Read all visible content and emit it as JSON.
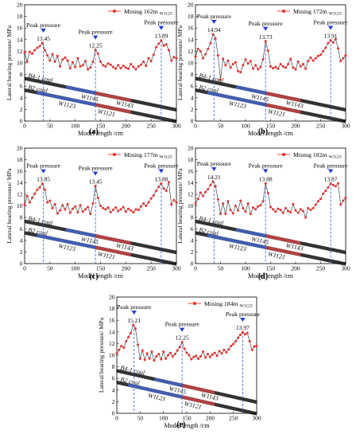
{
  "figure": {
    "ylabel": "Lateral bearing pressure/ MPa",
    "xlabel": "Model length /cm",
    "peak_label": "Peak pressure",
    "coal_labels": [
      "B4-1 coal",
      "B2 coal"
    ],
    "face_labels": [
      "W1145",
      "W1123",
      "W1143",
      "W1121"
    ],
    "legend_prefix": "Mining",
    "legend_subscript": "W1123"
  },
  "colors": {
    "series": "#e8302a",
    "peak_marker": "#1f3fd8",
    "dashed_line": "#3355dd",
    "seam_dark": "#333333",
    "seam_blue": "#4466cc",
    "seam_red": "#cc4444"
  },
  "chart_data": [
    {
      "type": "line",
      "panel": "(a)",
      "legend": "162m",
      "xlim": [
        0,
        300
      ],
      "ylim": [
        0,
        20
      ],
      "xticks": [
        0,
        50,
        100,
        150,
        200,
        250,
        300
      ],
      "yticks": [
        0,
        2,
        4,
        6,
        8,
        10,
        12,
        14,
        16,
        18,
        20
      ],
      "peaks": [
        {
          "x": 37,
          "y": 13.45,
          "label": "13.45"
        },
        {
          "x": 140,
          "y": 12.25,
          "label": "12.25"
        },
        {
          "x": 270,
          "y": 13.89,
          "label": "13.89"
        }
      ],
      "series": [
        {
          "x": [
            0,
            5,
            10,
            15,
            20,
            25,
            30,
            35,
            40,
            45,
            50,
            55,
            60,
            65,
            70,
            75,
            80,
            85,
            90,
            95,
            100,
            105,
            110,
            115,
            120,
            125,
            130,
            135,
            140,
            145,
            150,
            155,
            160,
            165,
            170,
            175,
            180,
            185,
            190,
            195,
            200,
            205,
            210,
            215,
            220,
            225,
            230,
            235,
            240,
            245,
            250,
            255,
            260,
            265,
            270,
            275,
            280,
            285,
            290,
            295,
            300
          ],
          "y": [
            11.8,
            10.2,
            11.9,
            11.6,
            12.2,
            12.6,
            12.9,
            13.45,
            12.2,
            11.3,
            10.4,
            11.5,
            10.2,
            11.2,
            9.4,
            10.6,
            10.9,
            10.4,
            9.1,
            10.1,
            9.3,
            10.8,
            9.4,
            9.6,
            10.3,
            8.9,
            9.2,
            10.2,
            12.25,
            11.6,
            10.2,
            9.6,
            9.4,
            9.9,
            9.7,
            9.3,
            9.0,
            9.6,
            9.1,
            9.5,
            9.2,
            9.0,
            9.8,
            9.3,
            8.9,
            9.4,
            9.7,
            10.2,
            9.5,
            10.8,
            10.3,
            11.4,
            12.7,
            13.3,
            13.89,
            13.0,
            13.2,
            12.2,
            10.4,
            11.0,
            10.8
          ]
        }
      ]
    },
    {
      "type": "line",
      "panel": "(b)",
      "legend": "172m",
      "xlim": [
        0,
        300
      ],
      "ylim": [
        0,
        20
      ],
      "xticks": [
        0,
        50,
        100,
        150,
        200,
        250,
        300
      ],
      "yticks": [
        0,
        2,
        4,
        6,
        8,
        10,
        12,
        14,
        16,
        18,
        20
      ],
      "peaks": [
        {
          "x": 37,
          "y": 14.94,
          "label": "14.94"
        },
        {
          "x": 140,
          "y": 13.73,
          "label": "13.73"
        },
        {
          "x": 270,
          "y": 13.91,
          "label": "13.91"
        }
      ],
      "series": [
        {
          "x": [
            0,
            5,
            10,
            15,
            20,
            25,
            30,
            35,
            40,
            45,
            50,
            55,
            60,
            65,
            70,
            75,
            80,
            85,
            90,
            95,
            100,
            105,
            110,
            115,
            120,
            125,
            130,
            135,
            140,
            145,
            150,
            155,
            160,
            165,
            170,
            175,
            180,
            185,
            190,
            195,
            200,
            205,
            210,
            215,
            220,
            225,
            230,
            235,
            240,
            245,
            250,
            255,
            260,
            265,
            270,
            275,
            280,
            285,
            290,
            295,
            300
          ],
          "y": [
            11.1,
            12.4,
            12.0,
            10.8,
            11.5,
            12.4,
            13.4,
            14.94,
            14.2,
            11.3,
            7.1,
            10.7,
            9.6,
            10.4,
            9.2,
            9.8,
            10.1,
            8.6,
            8.4,
            9.6,
            10.6,
            9.9,
            10.3,
            9.0,
            9.6,
            8.9,
            9.3,
            10.6,
            13.73,
            12.1,
            9.4,
            9.1,
            9.3,
            9.0,
            9.8,
            9.4,
            9.2,
            9.8,
            10.7,
            9.2,
            8.9,
            10.2,
            9.4,
            9.8,
            9.0,
            10.3,
            10.9,
            10.4,
            10.8,
            11.2,
            11.4,
            12.0,
            12.6,
            13.4,
            13.91,
            13.5,
            14.1,
            12.5,
            10.3,
            10.8,
            11.3
          ]
        }
      ]
    },
    {
      "type": "line",
      "panel": "(c)",
      "legend": "177m",
      "xlim": [
        0,
        300
      ],
      "ylim": [
        0,
        20
      ],
      "xticks": [
        0,
        50,
        100,
        150,
        200,
        250,
        300
      ],
      "yticks": [
        0,
        2,
        4,
        6,
        8,
        10,
        12,
        14,
        16,
        18,
        20
      ],
      "peaks": [
        {
          "x": 37,
          "y": 13.85,
          "label": "13.85"
        },
        {
          "x": 140,
          "y": 13.45,
          "label": "13.45"
        },
        {
          "x": 270,
          "y": 13.88,
          "label": "13.88"
        }
      ],
      "series": [
        {
          "x": [
            0,
            5,
            10,
            15,
            20,
            25,
            30,
            35,
            40,
            45,
            50,
            55,
            60,
            65,
            70,
            75,
            80,
            85,
            90,
            95,
            100,
            105,
            110,
            115,
            120,
            125,
            130,
            135,
            140,
            145,
            150,
            155,
            160,
            165,
            170,
            175,
            180,
            185,
            190,
            195,
            200,
            205,
            210,
            215,
            220,
            225,
            230,
            235,
            240,
            245,
            250,
            255,
            260,
            265,
            270,
            275,
            280,
            285,
            290,
            295,
            300
          ],
          "y": [
            10.2,
            11.7,
            10.6,
            11.4,
            12.1,
            12.8,
            13.2,
            13.85,
            12.8,
            10.6,
            10.9,
            9.6,
            10.3,
            8.7,
            9.2,
            10.1,
            9.4,
            10.3,
            8.8,
            9.5,
            9.9,
            8.9,
            10.1,
            9.0,
            9.4,
            9.8,
            8.6,
            10.4,
            13.45,
            11.4,
            10.0,
            9.6,
            9.4,
            9.7,
            8.9,
            9.3,
            9.7,
            9.1,
            9.4,
            9.8,
            9.0,
            9.5,
            9.2,
            8.9,
            9.4,
            9.3,
            9.9,
            10.4,
            10.0,
            10.6,
            11.3,
            11.8,
            12.6,
            13.3,
            13.88,
            13.0,
            12.6,
            14.1,
            10.2,
            11.0,
            10.6
          ]
        }
      ]
    },
    {
      "type": "line",
      "panel": "(d)",
      "legend": "182m",
      "xlim": [
        0,
        300
      ],
      "ylim": [
        0,
        20
      ],
      "xticks": [
        0,
        50,
        100,
        150,
        200,
        250,
        300
      ],
      "yticks": [
        0,
        2,
        4,
        6,
        8,
        10,
        12,
        14,
        16,
        18,
        20
      ],
      "peaks": [
        {
          "x": 37,
          "y": 14.21,
          "label": "14.21"
        },
        {
          "x": 140,
          "y": 13.88,
          "label": "13.88"
        },
        {
          "x": 270,
          "y": 13.87,
          "label": "13.87"
        }
      ],
      "series": [
        {
          "x": [
            0,
            5,
            10,
            15,
            20,
            25,
            30,
            35,
            40,
            45,
            50,
            55,
            60,
            65,
            70,
            75,
            80,
            85,
            90,
            95,
            100,
            105,
            110,
            115,
            120,
            125,
            130,
            135,
            140,
            145,
            150,
            155,
            160,
            165,
            170,
            175,
            180,
            185,
            190,
            195,
            200,
            205,
            210,
            215,
            220,
            225,
            230,
            235,
            240,
            245,
            250,
            255,
            260,
            265,
            270,
            275,
            280,
            285,
            290,
            295,
            300
          ],
          "y": [
            10.4,
            11.2,
            12.3,
            11.7,
            12.4,
            12.9,
            13.6,
            14.21,
            13.4,
            11.1,
            8.6,
            10.4,
            8.6,
            10.8,
            9.3,
            8.7,
            10.0,
            9.2,
            10.9,
            9.6,
            9.0,
            10.4,
            8.6,
            9.7,
            9.4,
            9.9,
            10.1,
            10.8,
            13.88,
            12.2,
            9.8,
            9.4,
            9.0,
            9.5,
            9.3,
            8.8,
            9.6,
            9.1,
            8.9,
            10.3,
            9.2,
            8.8,
            9.4,
            9.1,
            8.0,
            9.6,
            9.3,
            9.6,
            10.2,
            10.8,
            11.2,
            12.1,
            12.6,
            13.2,
            13.87,
            13.6,
            13.4,
            13.9,
            10.2,
            10.9,
            11.4
          ]
        }
      ]
    },
    {
      "type": "line",
      "panel": "(e)",
      "legend": "184m",
      "xlim": [
        0,
        300
      ],
      "ylim": [
        0,
        20
      ],
      "xticks": [
        0,
        50,
        100,
        150,
        200,
        250,
        300
      ],
      "yticks": [
        0,
        2,
        4,
        6,
        8,
        10,
        12,
        14,
        16,
        18,
        20
      ],
      "peaks": [
        {
          "x": 37,
          "y": 15.21,
          "label": "15.21"
        },
        {
          "x": 140,
          "y": 12.25,
          "label": "12.25"
        },
        {
          "x": 270,
          "y": 13.97,
          "label": "13.97"
        }
      ],
      "series": [
        {
          "x": [
            0,
            5,
            10,
            15,
            20,
            25,
            30,
            35,
            40,
            45,
            50,
            55,
            60,
            65,
            70,
            75,
            80,
            85,
            90,
            95,
            100,
            105,
            110,
            115,
            120,
            125,
            130,
            135,
            140,
            145,
            150,
            155,
            160,
            165,
            170,
            175,
            180,
            185,
            190,
            195,
            200,
            205,
            210,
            215,
            220,
            225,
            230,
            235,
            240,
            245,
            250,
            255,
            260,
            265,
            270,
            275,
            280,
            285,
            290,
            295,
            300
          ],
          "y": [
            10.3,
            10.9,
            11.6,
            11.3,
            12.4,
            13.1,
            13.8,
            15.21,
            14.6,
            11.8,
            9.4,
            10.8,
            9.2,
            10.3,
            9.4,
            10.6,
            9.1,
            9.8,
            10.2,
            9.3,
            10.6,
            9.4,
            10.0,
            10.4,
            9.8,
            10.2,
            10.8,
            11.4,
            12.25,
            11.1,
            10.4,
            10.0,
            9.3,
            9.7,
            9.9,
            9.4,
            9.8,
            10.6,
            9.6,
            10.2,
            9.7,
            10.1,
            10.4,
            9.9,
            10.7,
            10.3,
            10.9,
            10.5,
            11.0,
            11.6,
            11.9,
            12.4,
            13.0,
            13.5,
            13.97,
            13.6,
            13.8,
            12.4,
            10.9,
            11.5,
            11.6
          ]
        }
      ]
    }
  ]
}
